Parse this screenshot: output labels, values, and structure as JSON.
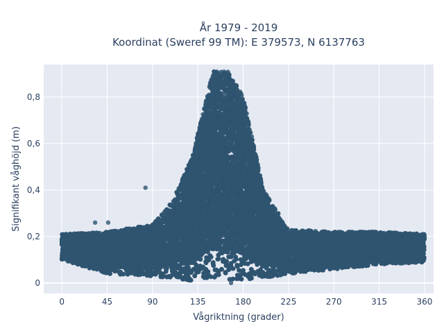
{
  "chart_data": {
    "type": "scatter",
    "title_line1": "År 1979 - 2019",
    "title_line2": "Koordinat (Sweref 99 TM): E 379573, N 6137763",
    "xlabel": "Vågriktning (grader)",
    "ylabel": "Signifikant våghöjd (m)",
    "xlim": [
      -18,
      369
    ],
    "ylim": [
      -0.045,
      0.94
    ],
    "x_ticks": [
      0,
      45,
      90,
      135,
      180,
      225,
      270,
      315,
      360
    ],
    "x_tick_labels": [
      "0",
      "45",
      "90",
      "135",
      "180",
      "225",
      "270",
      "315",
      "360"
    ],
    "y_ticks": [
      0,
      0.2,
      0.4,
      0.6,
      0.8
    ],
    "y_tick_labels": [
      "0",
      "0,2",
      "0,4",
      "0,6",
      "0,8"
    ],
    "grid": true,
    "marker_color": "#2e5470",
    "plot_background": "#e5e9f2",
    "envelope": {
      "description_points": [
        {
          "x": 0,
          "y_min": 0.1,
          "y_max": 0.21
        },
        {
          "x": 45,
          "y_min": 0.04,
          "y_max": 0.22
        },
        {
          "x": 90,
          "y_min": 0.03,
          "y_max": 0.25
        },
        {
          "x": 110,
          "y_min": 0.02,
          "y_max": 0.35
        },
        {
          "x": 130,
          "y_min": 0.01,
          "y_max": 0.55
        },
        {
          "x": 150,
          "y_min": 0.01,
          "y_max": 0.91
        },
        {
          "x": 165,
          "y_min": 0.0,
          "y_max": 0.91
        },
        {
          "x": 180,
          "y_min": 0.01,
          "y_max": 0.8
        },
        {
          "x": 200,
          "y_min": 0.02,
          "y_max": 0.4
        },
        {
          "x": 225,
          "y_min": 0.04,
          "y_max": 0.23
        },
        {
          "x": 270,
          "y_min": 0.06,
          "y_max": 0.22
        },
        {
          "x": 315,
          "y_min": 0.08,
          "y_max": 0.22
        },
        {
          "x": 360,
          "y_min": 0.09,
          "y_max": 0.21
        }
      ],
      "outliers": [
        {
          "x": 83,
          "y": 0.41
        },
        {
          "x": 33,
          "y": 0.26
        },
        {
          "x": 46,
          "y": 0.26
        },
        {
          "x": 168,
          "y": 0.0
        }
      ]
    }
  }
}
